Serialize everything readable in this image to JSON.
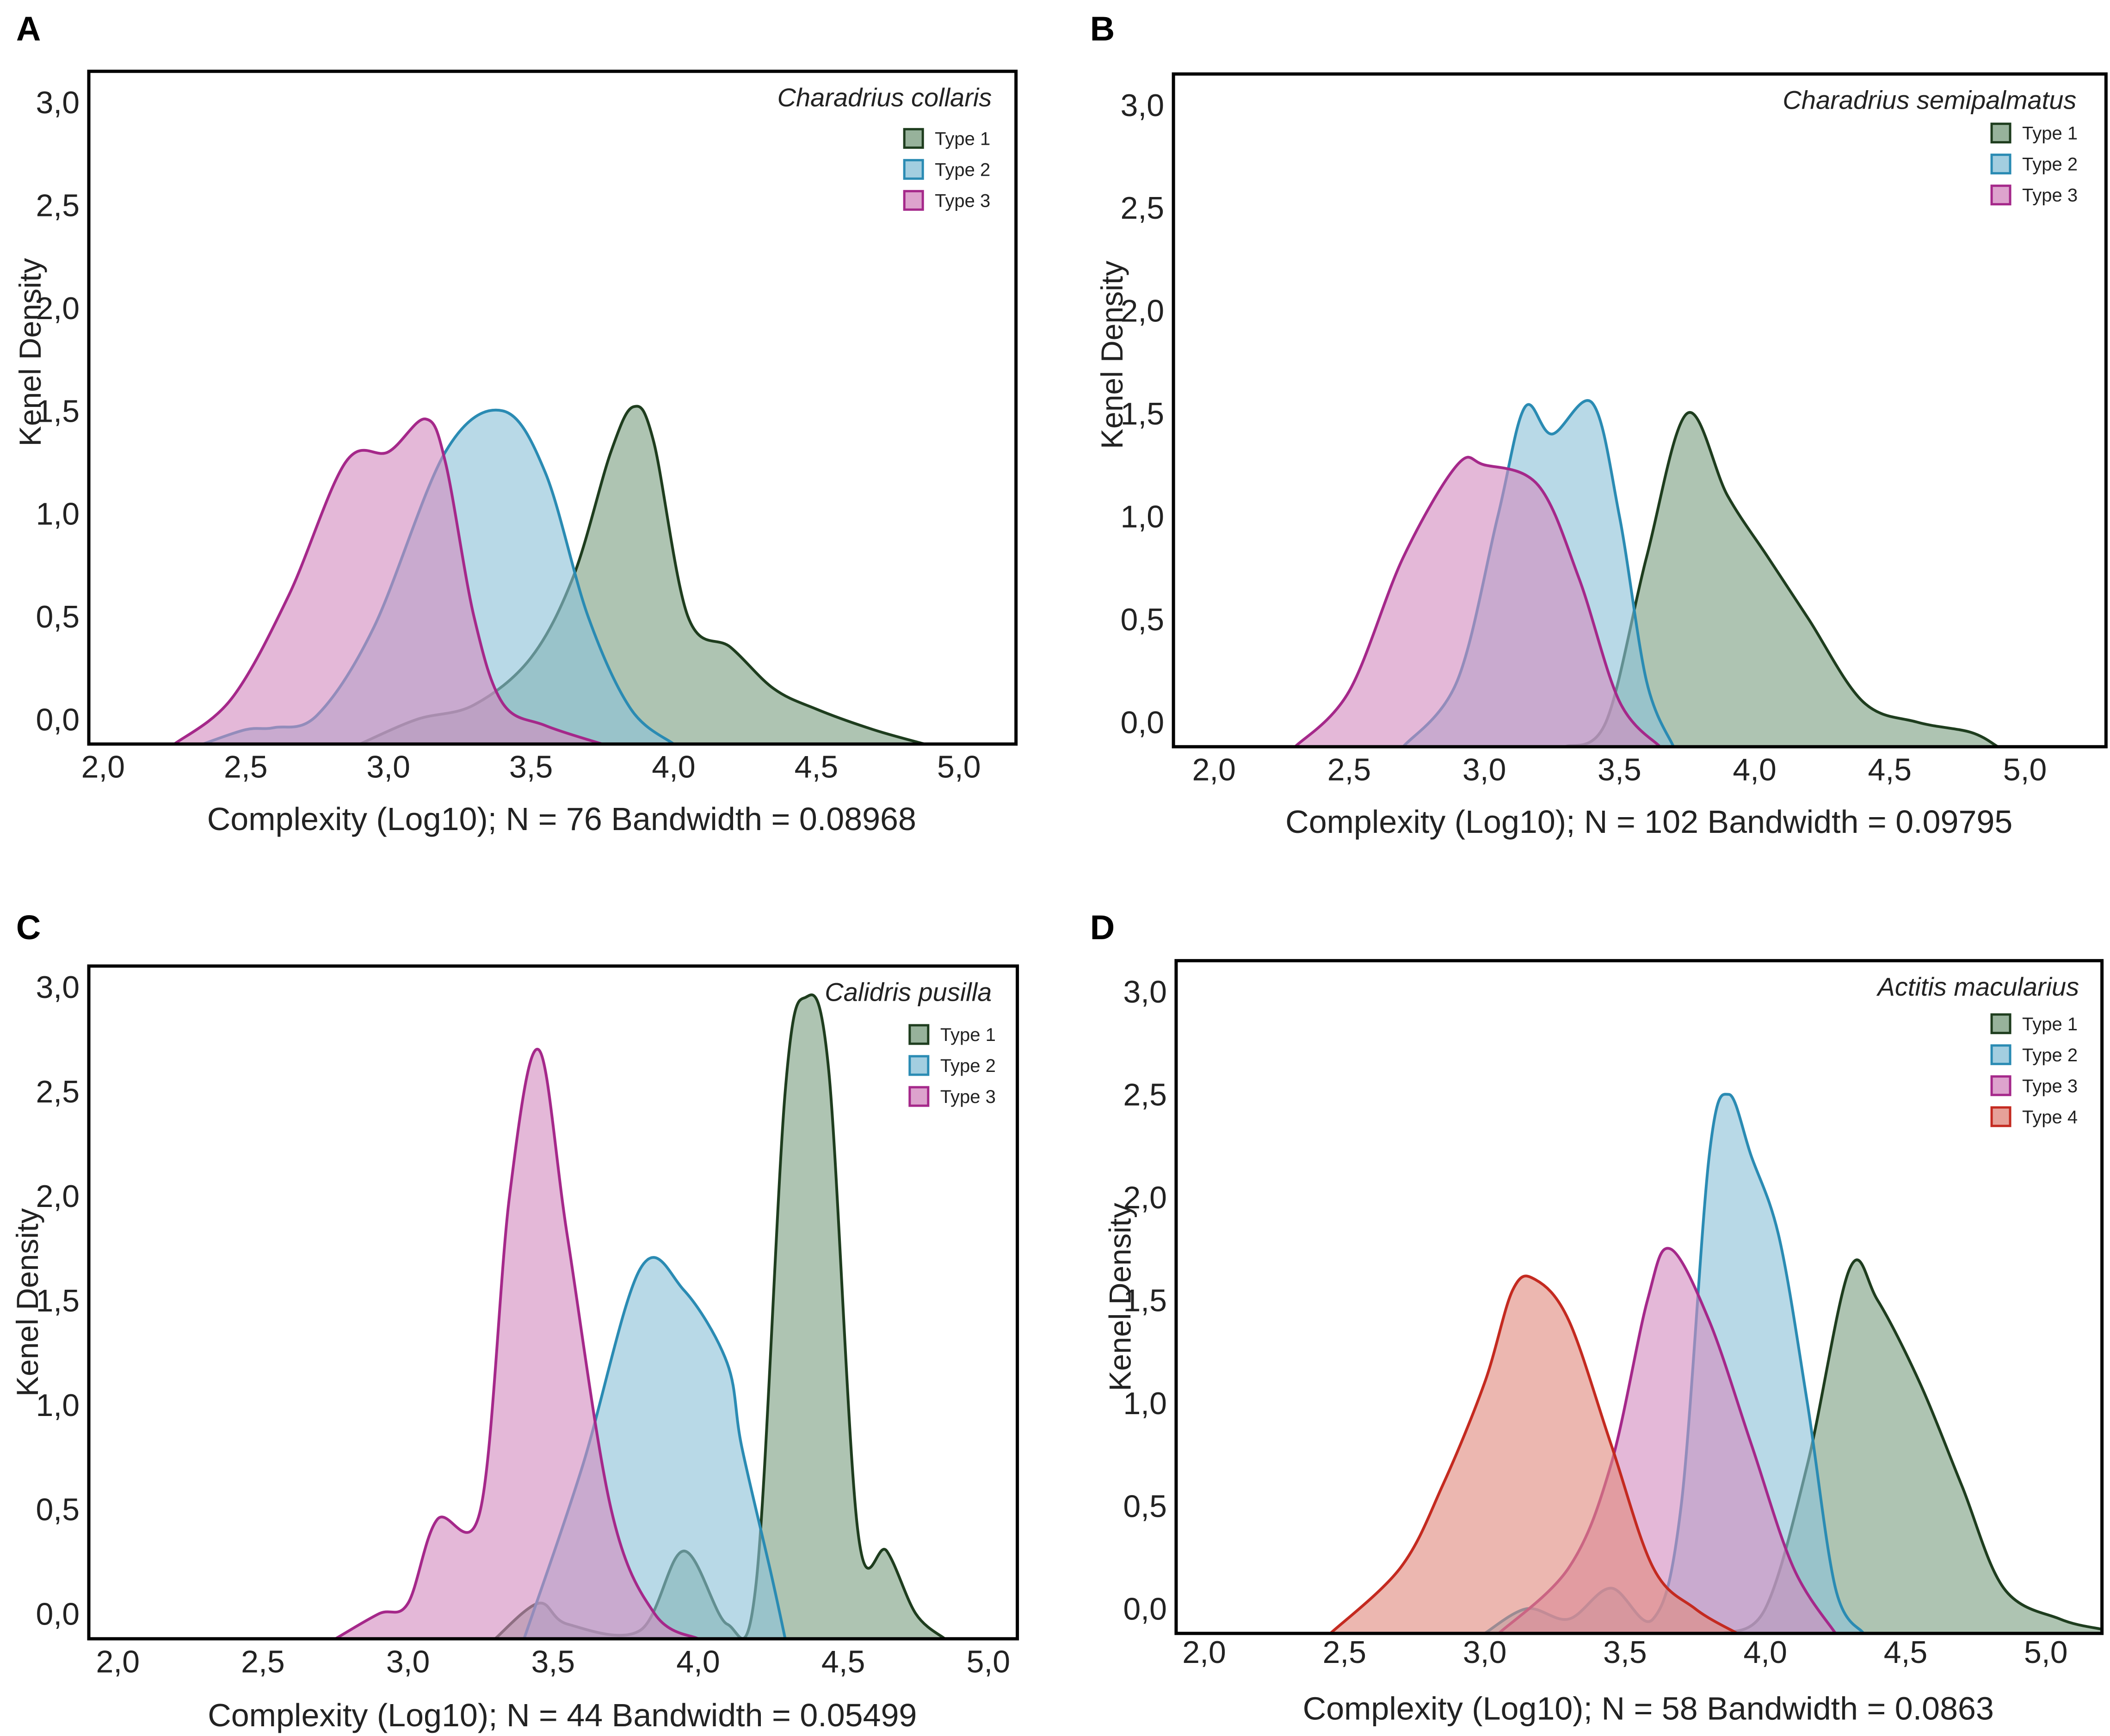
{
  "colors": {
    "type1": {
      "fill": "#7d9f82",
      "stroke": "#1e3d1e"
    },
    "type2": {
      "fill": "#8cc2d8",
      "stroke": "#2a8bb3"
    },
    "type3": {
      "fill": "#d48cc0",
      "stroke": "#a5288a"
    },
    "type4": {
      "fill": "#e08a80",
      "stroke": "#c42a20"
    }
  },
  "chart_data": [
    {
      "type": "area",
      "panel": "A",
      "species": "Charadrius collaris",
      "xlabel": "Complexity (Log10); N = 76   Bandwidth = 0.08968",
      "ylabel": "Kenel Density",
      "xlim": [
        1.95,
        5.2
      ],
      "ylim": [
        -0.12,
        3.15
      ],
      "xticks": [
        "2,0",
        "2,5",
        "3,0",
        "3,5",
        "4,0",
        "4,5",
        "5,0"
      ],
      "yticks": [
        "0,0",
        "0,5",
        "1,0",
        "1,5",
        "2,0",
        "2,5",
        "3,0"
      ],
      "series": [
        {
          "name": "Type 1",
          "key": "type1",
          "points": [
            [
              2.9,
              -0.12
            ],
            [
              3.1,
              0.0
            ],
            [
              3.3,
              0.07
            ],
            [
              3.5,
              0.3
            ],
            [
              3.65,
              0.7
            ],
            [
              3.78,
              1.3
            ],
            [
              3.86,
              1.52
            ],
            [
              3.93,
              1.35
            ],
            [
              4.05,
              0.5
            ],
            [
              4.2,
              0.35
            ],
            [
              4.35,
              0.15
            ],
            [
              4.5,
              0.05
            ],
            [
              4.7,
              -0.05
            ],
            [
              4.88,
              -0.12
            ]
          ]
        },
        {
          "name": "Type 2",
          "key": "type2",
          "points": [
            [
              2.35,
              -0.12
            ],
            [
              2.5,
              -0.05
            ],
            [
              2.6,
              -0.04
            ],
            [
              2.75,
              0.02
            ],
            [
              2.95,
              0.45
            ],
            [
              3.2,
              1.3
            ],
            [
              3.4,
              1.5
            ],
            [
              3.55,
              1.2
            ],
            [
              3.7,
              0.5
            ],
            [
              3.85,
              0.05
            ],
            [
              4.0,
              -0.12
            ]
          ]
        },
        {
          "name": "Type 3",
          "key": "type3",
          "points": [
            [
              2.25,
              -0.12
            ],
            [
              2.45,
              0.1
            ],
            [
              2.65,
              0.6
            ],
            [
              2.85,
              1.25
            ],
            [
              3.0,
              1.3
            ],
            [
              3.13,
              1.46
            ],
            [
              3.2,
              1.25
            ],
            [
              3.3,
              0.5
            ],
            [
              3.4,
              0.08
            ],
            [
              3.55,
              -0.03
            ],
            [
              3.75,
              -0.12
            ]
          ]
        }
      ]
    },
    {
      "type": "area",
      "panel": "B",
      "species": "Charadrius semipalmatus",
      "xlabel": "Complexity (Log10); N = 102   Bandwidth = 0.09795",
      "ylabel": "Kenel Density",
      "xlim": [
        1.85,
        5.3
      ],
      "ylim": [
        -0.12,
        3.15
      ],
      "xticks": [
        "2,0",
        "2,5",
        "3,0",
        "3,5",
        "4,0",
        "4,5",
        "5,0"
      ],
      "yticks": [
        "0,0",
        "0,5",
        "1,0",
        "1,5",
        "2,0",
        "2,5",
        "3,0"
      ],
      "series": [
        {
          "name": "Type 1",
          "key": "type1",
          "points": [
            [
              3.3,
              -0.12
            ],
            [
              3.45,
              0.0
            ],
            [
              3.6,
              0.8
            ],
            [
              3.75,
              1.5
            ],
            [
              3.9,
              1.1
            ],
            [
              4.05,
              0.8
            ],
            [
              4.2,
              0.5
            ],
            [
              4.4,
              0.1
            ],
            [
              4.6,
              0.0
            ],
            [
              4.8,
              -0.05
            ],
            [
              4.9,
              -0.12
            ]
          ]
        },
        {
          "name": "Type 2",
          "key": "type2",
          "points": [
            [
              2.7,
              -0.12
            ],
            [
              2.9,
              0.2
            ],
            [
              3.05,
              1.0
            ],
            [
              3.15,
              1.53
            ],
            [
              3.25,
              1.4
            ],
            [
              3.4,
              1.55
            ],
            [
              3.5,
              1.0
            ],
            [
              3.6,
              0.2
            ],
            [
              3.7,
              -0.12
            ]
          ]
        },
        {
          "name": "Type 3",
          "key": "type3",
          "points": [
            [
              2.3,
              -0.12
            ],
            [
              2.5,
              0.15
            ],
            [
              2.7,
              0.8
            ],
            [
              2.9,
              1.25
            ],
            [
              3.0,
              1.25
            ],
            [
              3.2,
              1.15
            ],
            [
              3.35,
              0.7
            ],
            [
              3.5,
              0.1
            ],
            [
              3.65,
              -0.12
            ]
          ]
        }
      ]
    },
    {
      "type": "area",
      "panel": "C",
      "species": "Calidris pusilla",
      "xlabel": "Complexity (Log10); N = 44   Bandwidth = 0.05499",
      "ylabel": "Kenel Density",
      "xlim": [
        1.9,
        5.1
      ],
      "ylim": [
        -0.12,
        3.1
      ],
      "xticks": [
        "2,0",
        "2,5",
        "3,0",
        "3,5",
        "4,0",
        "4,5",
        "5,0"
      ],
      "yticks": [
        "0,0",
        "0,5",
        "1,0",
        "1,5",
        "2,0",
        "2,5",
        "3,0"
      ],
      "series": [
        {
          "name": "Type 1",
          "key": "type1",
          "points": [
            [
              3.3,
              -0.12
            ],
            [
              3.45,
              0.05
            ],
            [
              3.55,
              -0.05
            ],
            [
              3.8,
              -0.08
            ],
            [
              3.95,
              0.3
            ],
            [
              4.1,
              -0.05
            ],
            [
              4.2,
              0.15
            ],
            [
              4.3,
              2.5
            ],
            [
              4.37,
              2.95
            ],
            [
              4.45,
              2.6
            ],
            [
              4.55,
              0.4
            ],
            [
              4.65,
              0.3
            ],
            [
              4.75,
              0.0
            ],
            [
              4.85,
              -0.12
            ]
          ]
        },
        {
          "name": "Type 2",
          "key": "type2",
          "points": [
            [
              3.4,
              -0.12
            ],
            [
              3.6,
              0.7
            ],
            [
              3.8,
              1.65
            ],
            [
              3.95,
              1.55
            ],
            [
              4.1,
              1.2
            ],
            [
              4.15,
              0.8
            ],
            [
              4.25,
              0.2
            ],
            [
              4.3,
              -0.12
            ]
          ]
        },
        {
          "name": "Type 3",
          "key": "type3",
          "points": [
            [
              2.75,
              -0.12
            ],
            [
              2.9,
              0.0
            ],
            [
              3.0,
              0.05
            ],
            [
              3.1,
              0.45
            ],
            [
              3.25,
              0.5
            ],
            [
              3.35,
              2.0
            ],
            [
              3.45,
              2.7
            ],
            [
              3.55,
              1.8
            ],
            [
              3.7,
              0.5
            ],
            [
              3.85,
              0.0
            ],
            [
              4.0,
              -0.12
            ]
          ]
        }
      ]
    },
    {
      "type": "area",
      "panel": "D",
      "species": "Actitis macularius",
      "xlabel": "Complexity (Log10); N = 58   Bandwidth = 0.0863",
      "ylabel": "Kenel Density",
      "xlim": [
        1.9,
        5.2
      ],
      "ylim": [
        -0.12,
        3.15
      ],
      "xticks": [
        "2,0",
        "2,5",
        "3,0",
        "3,5",
        "4,0",
        "4,5",
        "5,0"
      ],
      "yticks": [
        "0,0",
        "0,5",
        "1,0",
        "1,5",
        "2,0",
        "2,5",
        "3,0"
      ],
      "series": [
        {
          "name": "Type 1",
          "key": "type1",
          "points": [
            [
              3.85,
              -0.12
            ],
            [
              4.0,
              0.0
            ],
            [
              4.15,
              0.7
            ],
            [
              4.3,
              1.65
            ],
            [
              4.4,
              1.5
            ],
            [
              4.55,
              1.1
            ],
            [
              4.7,
              0.6
            ],
            [
              4.85,
              0.1
            ],
            [
              5.05,
              -0.05
            ],
            [
              5.2,
              -0.1
            ]
          ]
        },
        {
          "name": "Type 2",
          "key": "type2",
          "points": [
            [
              3.0,
              -0.12
            ],
            [
              3.15,
              0.0
            ],
            [
              3.3,
              -0.05
            ],
            [
              3.45,
              0.1
            ],
            [
              3.6,
              -0.05
            ],
            [
              3.7,
              0.5
            ],
            [
              3.8,
              2.2
            ],
            [
              3.87,
              2.5
            ],
            [
              3.95,
              2.2
            ],
            [
              4.05,
              1.8
            ],
            [
              4.15,
              1.0
            ],
            [
              4.25,
              0.1
            ],
            [
              4.35,
              -0.12
            ]
          ]
        },
        {
          "name": "Type 3",
          "key": "type3",
          "points": [
            [
              3.05,
              -0.12
            ],
            [
              3.3,
              0.2
            ],
            [
              3.45,
              0.7
            ],
            [
              3.58,
              1.5
            ],
            [
              3.66,
              1.75
            ],
            [
              3.8,
              1.4
            ],
            [
              3.95,
              0.8
            ],
            [
              4.1,
              0.2
            ],
            [
              4.25,
              -0.12
            ]
          ]
        },
        {
          "name": "Type 4",
          "key": "type4",
          "points": [
            [
              2.45,
              -0.12
            ],
            [
              2.7,
              0.2
            ],
            [
              2.85,
              0.6
            ],
            [
              3.0,
              1.1
            ],
            [
              3.1,
              1.55
            ],
            [
              3.18,
              1.6
            ],
            [
              3.3,
              1.4
            ],
            [
              3.45,
              0.8
            ],
            [
              3.6,
              0.2
            ],
            [
              3.75,
              0.0
            ],
            [
              3.9,
              -0.12
            ]
          ]
        }
      ]
    }
  ]
}
